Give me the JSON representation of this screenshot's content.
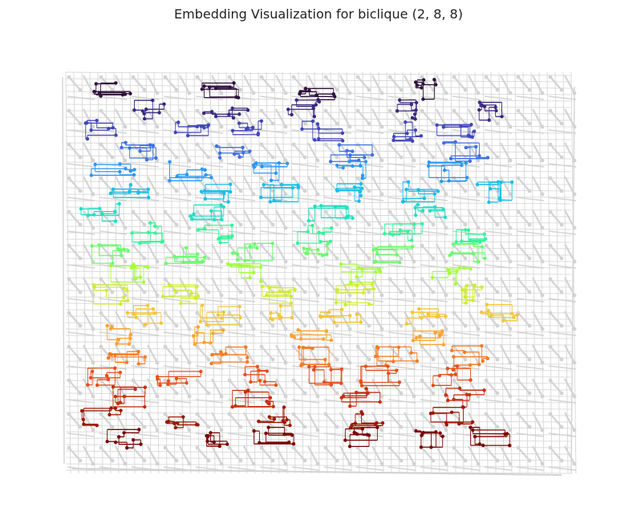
{
  "figure": {
    "title": "Embedding Visualization for biclique (2, 8, 8)"
  },
  "graph": {
    "background_edge_color": "#d3d3d3",
    "background_node_color": "#d3d3d3",
    "colormap": "turbo",
    "chain_colors": [
      "#30123b",
      "#3a2a7e",
      "#4146b8",
      "#3e6fe4",
      "#2a97f9",
      "#1cbee6",
      "#22dfc1",
      "#37f39a",
      "#6afd6a",
      "#a4fc3b",
      "#d0eb35",
      "#f1c63a",
      "#fca333",
      "#f67b22",
      "#e5501a",
      "#c72f0e",
      "#9c1803",
      "#7a0403"
    ]
  }
}
